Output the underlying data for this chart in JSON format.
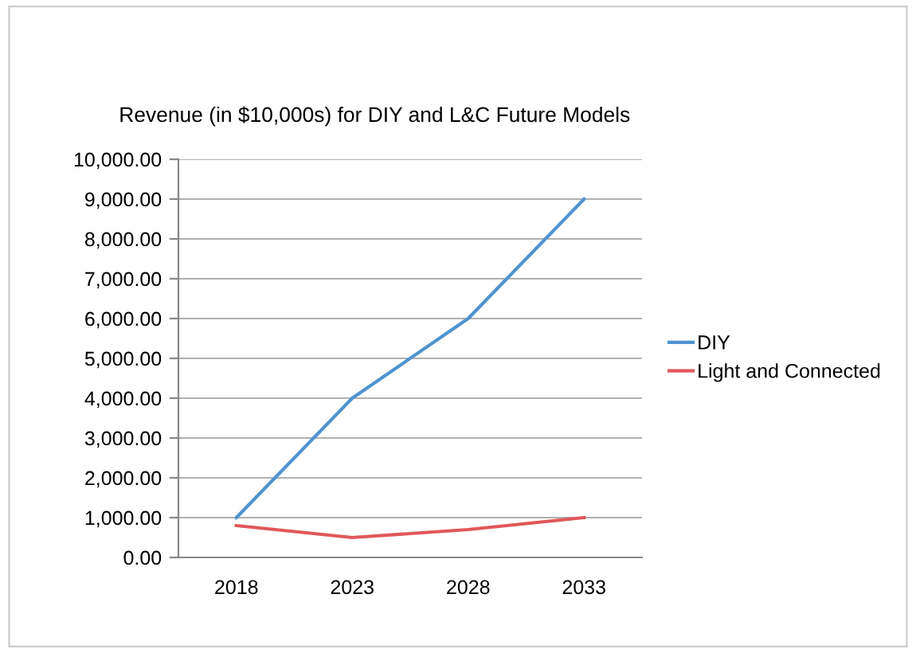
{
  "chart_data": {
    "type": "line",
    "title": "Revenue (in $10,000s) for DIY and L&C Future Models",
    "categories": [
      "2018",
      "2023",
      "2028",
      "2033"
    ],
    "series": [
      {
        "name": "DIY",
        "color": "#4f94cf",
        "values": [
          1000,
          4000,
          6000,
          9000
        ]
      },
      {
        "name": "Light and Connected",
        "color": "#e0585a",
        "values": [
          800,
          500,
          700,
          1000
        ]
      }
    ],
    "ylim": [
      0,
      10000
    ],
    "yticks": [
      {
        "value": 0,
        "label": "0.00"
      },
      {
        "value": 1000,
        "label": "1,000.00"
      },
      {
        "value": 2000,
        "label": "2,000.00"
      },
      {
        "value": 3000,
        "label": "3,000.00"
      },
      {
        "value": 4000,
        "label": "4,000.00"
      },
      {
        "value": 5000,
        "label": "5,000.00"
      },
      {
        "value": 6000,
        "label": "6,000.00"
      },
      {
        "value": 7000,
        "label": "7,000.00"
      },
      {
        "value": 8000,
        "label": "8,000.00"
      },
      {
        "value": 9000,
        "label": "9,000.00"
      },
      {
        "value": 10000,
        "label": "10,000.00"
      }
    ],
    "grid": "y",
    "legend": "right",
    "marker": "none",
    "line_style": "solid"
  }
}
